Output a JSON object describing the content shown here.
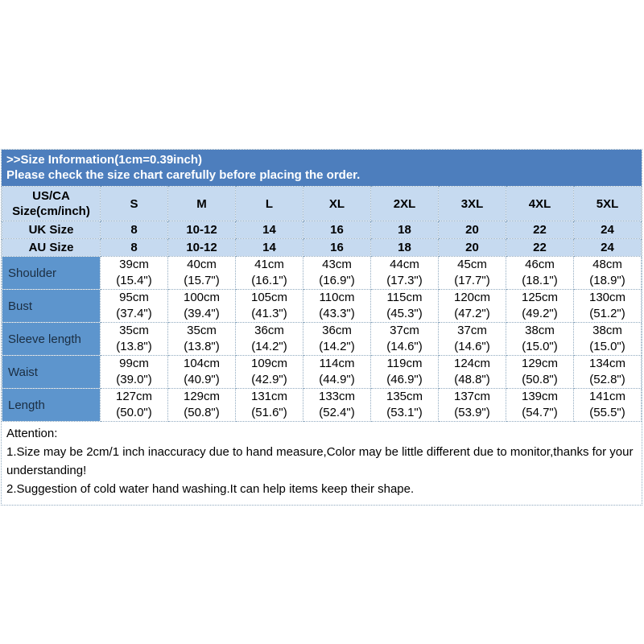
{
  "colors": {
    "banner_bg": "#4d7ebd",
    "header_row_bg": "#c6daf0",
    "label_col_bg": "#5d95cd",
    "border": "#8fa9bf",
    "banner_text": "#ffffff",
    "body_text": "#000000"
  },
  "banner": {
    "line1": ">>Size Information(1cm=0.39inch)",
    "line2": "Please check the size chart carefully before placing the order."
  },
  "size_table": {
    "corner_line1": "US/CA",
    "corner_line2": "Size(cm/inch)",
    "size_labels": [
      "S",
      "M",
      "L",
      "XL",
      "2XL",
      "3XL",
      "4XL",
      "5XL"
    ],
    "size_rows": [
      {
        "label": "UK Size",
        "values": [
          "8",
          "10-12",
          "14",
          "16",
          "18",
          "20",
          "22",
          "24"
        ]
      },
      {
        "label": "AU Size",
        "values": [
          "8",
          "10-12",
          "14",
          "16",
          "18",
          "20",
          "22",
          "24"
        ]
      }
    ],
    "measurement_rows": [
      {
        "label": "Shoulder",
        "cells": [
          {
            "cm": "39cm",
            "in": "(15.4\")"
          },
          {
            "cm": "40cm",
            "in": "(15.7\")"
          },
          {
            "cm": "41cm",
            "in": "(16.1\")"
          },
          {
            "cm": "43cm",
            "in": "(16.9\")"
          },
          {
            "cm": "44cm",
            "in": "(17.3\")"
          },
          {
            "cm": "45cm",
            "in": "(17.7\")"
          },
          {
            "cm": "46cm",
            "in": "(18.1\")"
          },
          {
            "cm": "48cm",
            "in": "(18.9\")"
          }
        ]
      },
      {
        "label": "Bust",
        "cells": [
          {
            "cm": "95cm",
            "in": "(37.4\")"
          },
          {
            "cm": "100cm",
            "in": "(39.4\")"
          },
          {
            "cm": "105cm",
            "in": "(41.3\")"
          },
          {
            "cm": "110cm",
            "in": "(43.3\")"
          },
          {
            "cm": "115cm",
            "in": "(45.3\")"
          },
          {
            "cm": "120cm",
            "in": "(47.2\")"
          },
          {
            "cm": "125cm",
            "in": "(49.2\")"
          },
          {
            "cm": "130cm",
            "in": "(51.2\")"
          }
        ]
      },
      {
        "label": "Sleeve length",
        "cells": [
          {
            "cm": "35cm",
            "in": "(13.8\")"
          },
          {
            "cm": "35cm",
            "in": "(13.8\")"
          },
          {
            "cm": "36cm",
            "in": "(14.2\")"
          },
          {
            "cm": "36cm",
            "in": "(14.2\")"
          },
          {
            "cm": "37cm",
            "in": "(14.6\")"
          },
          {
            "cm": "37cm",
            "in": "(14.6\")"
          },
          {
            "cm": "38cm",
            "in": "(15.0\")"
          },
          {
            "cm": "38cm",
            "in": "(15.0\")"
          }
        ]
      },
      {
        "label": "Waist",
        "cells": [
          {
            "cm": "99cm",
            "in": "(39.0\")"
          },
          {
            "cm": "104cm",
            "in": "(40.9\")"
          },
          {
            "cm": "109cm",
            "in": "(42.9\")"
          },
          {
            "cm": "114cm",
            "in": "(44.9\")"
          },
          {
            "cm": "119cm",
            "in": "(46.9\")"
          },
          {
            "cm": "124cm",
            "in": "(48.8\")"
          },
          {
            "cm": "129cm",
            "in": "(50.8\")"
          },
          {
            "cm": "134cm",
            "in": "(52.8\")"
          }
        ]
      },
      {
        "label": "Length",
        "cells": [
          {
            "cm": "127cm",
            "in": "(50.0\")"
          },
          {
            "cm": "129cm",
            "in": "(50.8\")"
          },
          {
            "cm": "131cm",
            "in": "(51.6\")"
          },
          {
            "cm": "133cm",
            "in": "(52.4\")"
          },
          {
            "cm": "135cm",
            "in": "(53.1\")"
          },
          {
            "cm": "137cm",
            "in": "(53.9\")"
          },
          {
            "cm": "139cm",
            "in": "(54.7\")"
          },
          {
            "cm": "141cm",
            "in": "(55.5\")"
          }
        ]
      }
    ]
  },
  "attention": {
    "title": "Attention:",
    "lines": [
      "1.Size may be 2cm/1 inch inaccuracy due to hand measure,Color may be little different due to monitor,thanks for your understanding!",
      "2.Suggestion of cold water hand washing.It can help items keep their shape."
    ]
  }
}
